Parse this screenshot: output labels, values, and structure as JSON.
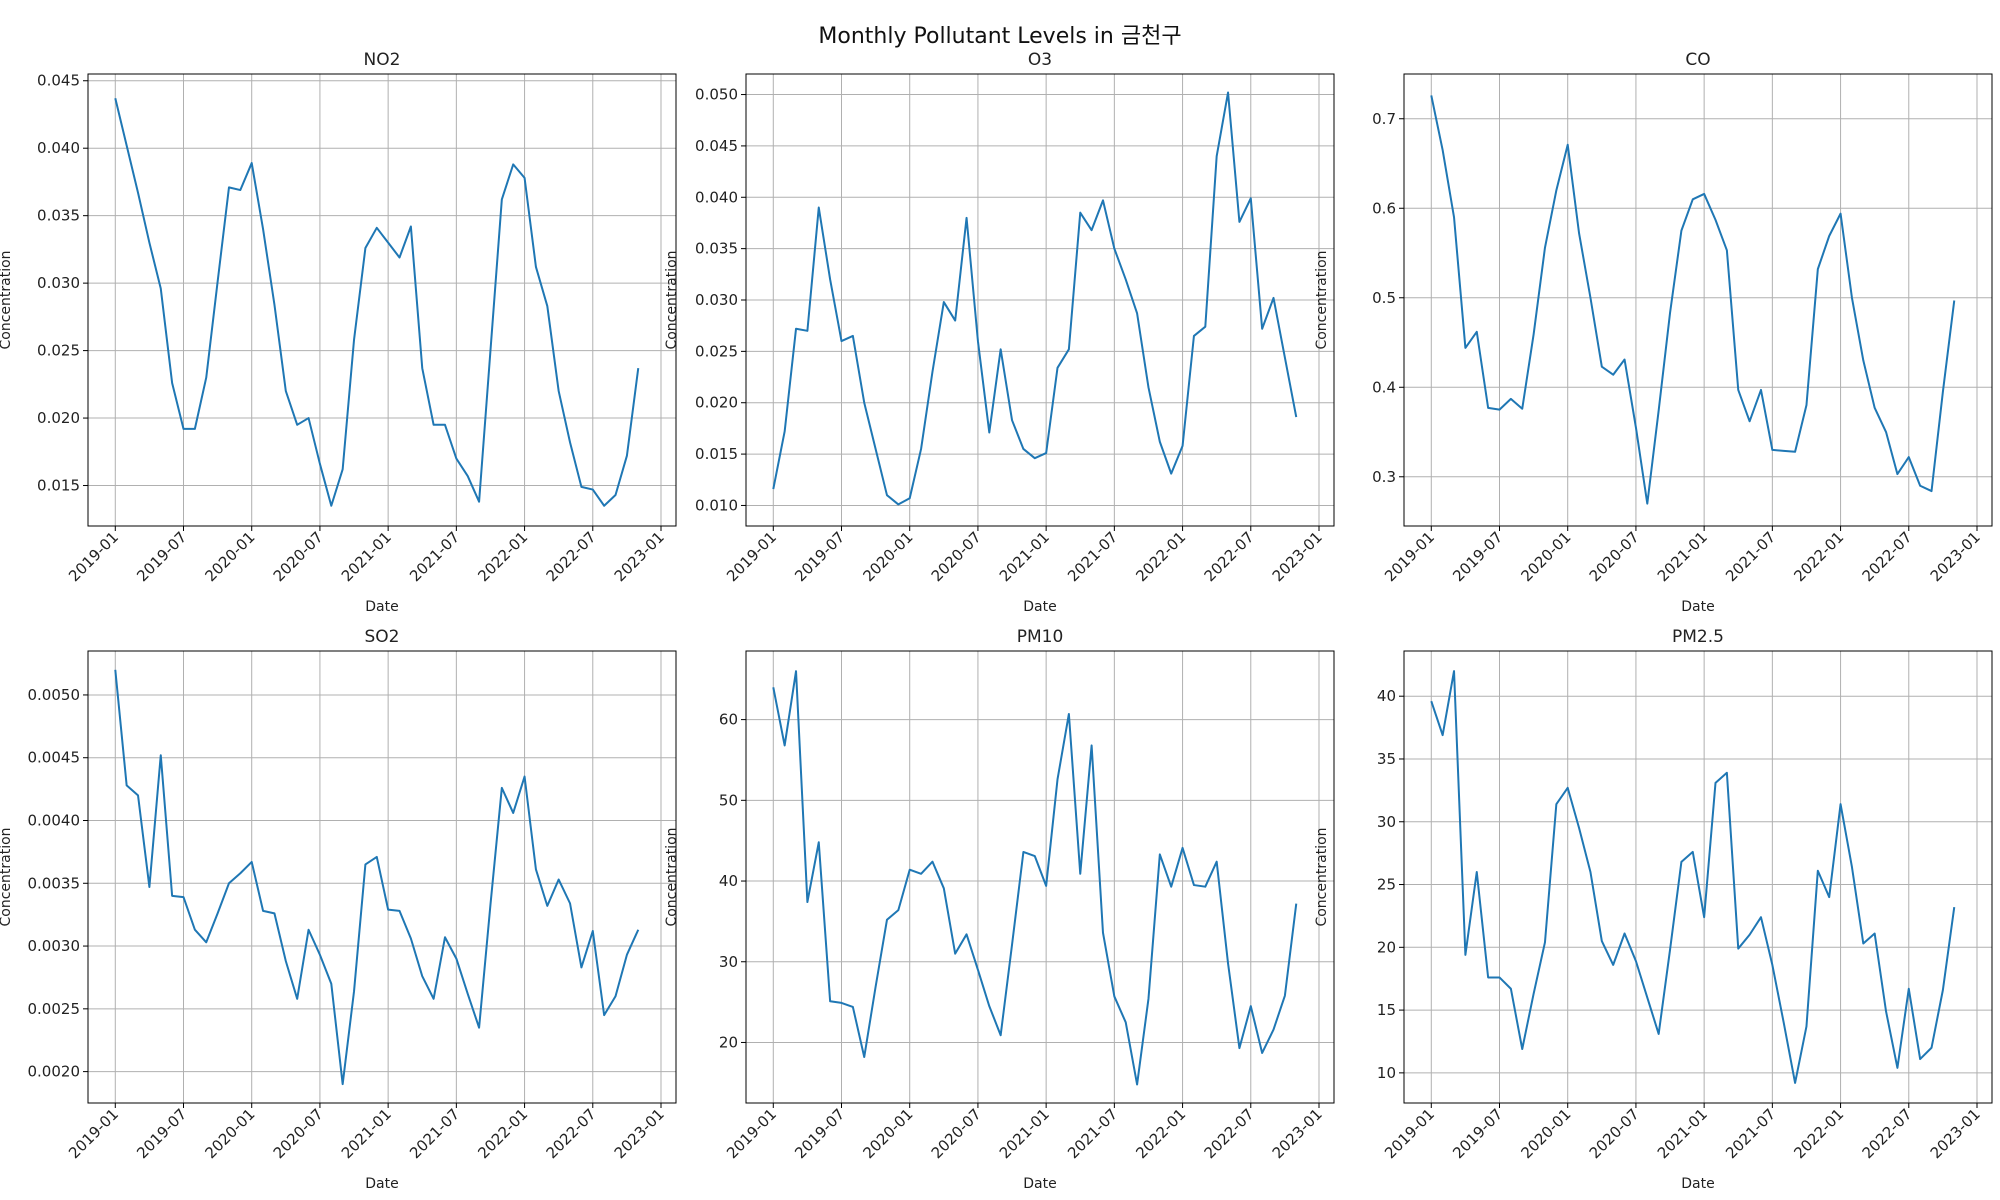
{
  "figure": {
    "title": "Monthly Pollutant Levels in 금천구"
  },
  "chart_data": [
    {
      "type": "line",
      "title": "NO2",
      "xlabel": "Date",
      "ylabel": "Concentration",
      "x_start": "2019-01",
      "x_end": "2022-12",
      "x_ticks": [
        "2019-01",
        "2019-07",
        "2020-01",
        "2020-07",
        "2021-01",
        "2021-07",
        "2022-01",
        "2022-07",
        "2023-01"
      ],
      "ylim": [
        0.012,
        0.0455
      ],
      "y_ticks": [
        0.015,
        0.02,
        0.025,
        0.03,
        0.035,
        0.04,
        0.045
      ],
      "y_tick_labels": [
        "0.015",
        "0.020",
        "0.025",
        "0.030",
        "0.035",
        "0.040",
        "0.045"
      ],
      "grid": true,
      "series": [
        {
          "color": "#1f77b4",
          "values": [
            0.0437,
            0.0402,
            0.0367,
            0.033,
            0.0296,
            0.0226,
            0.0192,
            0.0192,
            0.023,
            0.0301,
            0.0371,
            0.0369,
            0.0389,
            0.034,
            0.0284,
            0.022,
            0.0195,
            0.02,
            0.0166,
            0.0135,
            0.0162,
            0.0258,
            0.0326,
            0.0341,
            0.033,
            0.0319,
            0.0342,
            0.0237,
            0.0195,
            0.0195,
            0.017,
            0.0157,
            0.0138,
            0.025,
            0.0362,
            0.0388,
            0.0378,
            0.0312,
            0.0283,
            0.022,
            0.0182,
            0.0149,
            0.0147,
            0.0135,
            0.0143,
            0.0172,
            0.0237
          ]
        }
      ]
    },
    {
      "type": "line",
      "title": "O3",
      "xlabel": "Date",
      "ylabel": "Concentration",
      "x_start": "2019-01",
      "x_end": "2022-12",
      "x_ticks": [
        "2019-01",
        "2019-07",
        "2020-01",
        "2020-07",
        "2021-01",
        "2021-07",
        "2022-01",
        "2022-07",
        "2023-01"
      ],
      "ylim": [
        0.008,
        0.052
      ],
      "y_ticks": [
        0.01,
        0.015,
        0.02,
        0.025,
        0.03,
        0.035,
        0.04,
        0.045,
        0.05
      ],
      "y_tick_labels": [
        "0.010",
        "0.015",
        "0.020",
        "0.025",
        "0.030",
        "0.035",
        "0.040",
        "0.045",
        "0.050"
      ],
      "grid": true,
      "series": [
        {
          "color": "#1f77b4",
          "values": [
            0.0116,
            0.0172,
            0.0272,
            0.027,
            0.039,
            0.032,
            0.026,
            0.0265,
            0.02,
            0.0155,
            0.011,
            0.0101,
            0.0107,
            0.0155,
            0.023,
            0.0298,
            0.028,
            0.038,
            0.026,
            0.0171,
            0.0252,
            0.0183,
            0.0155,
            0.0146,
            0.0151,
            0.0234,
            0.0252,
            0.0385,
            0.0368,
            0.0397,
            0.035,
            0.032,
            0.0287,
            0.0215,
            0.0162,
            0.0131,
            0.0158,
            0.0265,
            0.0274,
            0.044,
            0.0502,
            0.0376,
            0.0399,
            0.0272,
            0.0302,
            0.0244,
            0.0186
          ]
        }
      ]
    },
    {
      "type": "line",
      "title": "CO",
      "xlabel": "Date",
      "ylabel": "Concentration",
      "x_start": "2019-01",
      "x_end": "2022-12",
      "x_ticks": [
        "2019-01",
        "2019-07",
        "2020-01",
        "2020-07",
        "2021-01",
        "2021-07",
        "2022-01",
        "2022-07",
        "2023-01"
      ],
      "ylim": [
        0.245,
        0.75
      ],
      "y_ticks": [
        0.3,
        0.4,
        0.5,
        0.6,
        0.7
      ],
      "y_tick_labels": [
        "0.3",
        "0.4",
        "0.5",
        "0.6",
        "0.7"
      ],
      "grid": true,
      "series": [
        {
          "color": "#1f77b4",
          "values": [
            0.726,
            0.665,
            0.59,
            0.444,
            0.462,
            0.377,
            0.375,
            0.387,
            0.376,
            0.459,
            0.556,
            0.62,
            0.671,
            0.572,
            0.5,
            0.423,
            0.414,
            0.431,
            0.355,
            0.27,
            0.374,
            0.483,
            0.575,
            0.61,
            0.616,
            0.587,
            0.553,
            0.397,
            0.362,
            0.397,
            0.33,
            0.329,
            0.328,
            0.38,
            0.532,
            0.569,
            0.594,
            0.5,
            0.43,
            0.377,
            0.35,
            0.303,
            0.322,
            0.29,
            0.284,
            0.395,
            0.497
          ]
        }
      ]
    },
    {
      "type": "line",
      "title": "SO2",
      "xlabel": "Date",
      "ylabel": "Concentration",
      "x_start": "2019-01",
      "x_end": "2022-12",
      "x_ticks": [
        "2019-01",
        "2019-07",
        "2020-01",
        "2020-07",
        "2021-01",
        "2021-07",
        "2022-01",
        "2022-07",
        "2023-01"
      ],
      "ylim": [
        0.00175,
        0.00535
      ],
      "y_ticks": [
        0.002,
        0.0025,
        0.003,
        0.0035,
        0.004,
        0.0045,
        0.005
      ],
      "y_tick_labels": [
        "0.0020",
        "0.0025",
        "0.0030",
        "0.0035",
        "0.0040",
        "0.0045",
        "0.0050"
      ],
      "grid": true,
      "series": [
        {
          "color": "#1f77b4",
          "values": [
            0.0052,
            0.00428,
            0.0042,
            0.00347,
            0.00452,
            0.0034,
            0.00339,
            0.00313,
            0.00303,
            0.00326,
            0.0035,
            0.00358,
            0.00367,
            0.00328,
            0.00326,
            0.00288,
            0.00258,
            0.00313,
            0.00293,
            0.0027,
            0.0019,
            0.00264,
            0.00365,
            0.00371,
            0.00329,
            0.00328,
            0.00306,
            0.00276,
            0.00258,
            0.00307,
            0.0029,
            0.00262,
            0.00235,
            0.00333,
            0.00426,
            0.00406,
            0.00435,
            0.00361,
            0.00332,
            0.00353,
            0.00334,
            0.00283,
            0.00312,
            0.00245,
            0.0026,
            0.00293,
            0.00313
          ]
        }
      ]
    },
    {
      "type": "line",
      "title": "PM10",
      "xlabel": "Date",
      "ylabel": "Concentration",
      "x_start": "2019-01",
      "x_end": "2022-12",
      "x_ticks": [
        "2019-01",
        "2019-07",
        "2020-01",
        "2020-07",
        "2021-01",
        "2021-07",
        "2022-01",
        "2022-07",
        "2023-01"
      ],
      "ylim": [
        12.5,
        68.5
      ],
      "y_ticks": [
        20,
        30,
        40,
        50,
        60
      ],
      "y_tick_labels": [
        "20",
        "30",
        "40",
        "50",
        "60"
      ],
      "grid": true,
      "series": [
        {
          "color": "#1f77b4",
          "values": [
            64.0,
            56.8,
            66.0,
            37.4,
            44.8,
            25.1,
            24.9,
            24.4,
            18.2,
            26.9,
            35.2,
            36.4,
            41.4,
            40.9,
            42.4,
            39.1,
            31.0,
            33.4,
            29.0,
            24.5,
            20.9,
            32.1,
            43.6,
            43.1,
            39.4,
            52.6,
            60.7,
            40.9,
            56.8,
            33.6,
            25.7,
            22.5,
            14.8,
            25.4,
            43.3,
            39.3,
            44.1,
            39.5,
            39.3,
            42.4,
            29.8,
            19.3,
            24.5,
            18.7,
            21.6,
            25.8,
            37.2
          ]
        }
      ]
    },
    {
      "type": "line",
      "title": "PM2.5",
      "xlabel": "Date",
      "ylabel": "Concentration",
      "x_start": "2019-01",
      "x_end": "2022-12",
      "x_ticks": [
        "2019-01",
        "2019-07",
        "2020-01",
        "2020-07",
        "2021-01",
        "2021-07",
        "2022-01",
        "2022-07",
        "2023-01"
      ],
      "ylim": [
        7.6,
        43.6
      ],
      "y_ticks": [
        10,
        15,
        20,
        25,
        30,
        35,
        40
      ],
      "y_tick_labels": [
        "10",
        "15",
        "20",
        "25",
        "30",
        "35",
        "40"
      ],
      "grid": true,
      "series": [
        {
          "color": "#1f77b4",
          "values": [
            39.6,
            36.9,
            42.0,
            19.4,
            26.0,
            17.6,
            17.6,
            16.7,
            11.9,
            16.3,
            20.4,
            31.4,
            32.7,
            29.5,
            26.0,
            20.5,
            18.6,
            21.1,
            18.9,
            16.0,
            13.1,
            19.8,
            26.8,
            27.6,
            22.4,
            33.1,
            33.9,
            19.9,
            21.0,
            22.4,
            18.6,
            14.0,
            9.2,
            13.7,
            26.1,
            24.0,
            31.4,
            26.4,
            20.3,
            21.1,
            14.9,
            10.4,
            16.7,
            11.1,
            12.0,
            16.6,
            23.2
          ]
        }
      ]
    }
  ]
}
